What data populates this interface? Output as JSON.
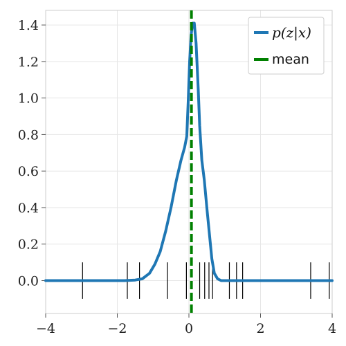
{
  "chart_data": {
    "type": "line",
    "xlim": [
      -4,
      4
    ],
    "ylim": [
      -0.18,
      1.48
    ],
    "grid": true,
    "legend_position": "top-right",
    "x_ticks": [
      -4,
      -2,
      0,
      2,
      4
    ],
    "x_tick_labels": [
      "−4",
      "−2",
      "0",
      "2",
      "4"
    ],
    "y_ticks": [
      0.0,
      0.2,
      0.4,
      0.6,
      0.8,
      1.0,
      1.2,
      1.4
    ],
    "y_tick_labels": [
      "0.0",
      "0.2",
      "0.4",
      "0.6",
      "0.8",
      "1.0",
      "1.2",
      "1.4"
    ],
    "series": [
      {
        "name": "p(z|x)",
        "color": "#1f77b4",
        "style": "solid",
        "points": [
          [
            -4.0,
            0.0
          ],
          [
            -1.8,
            0.0
          ],
          [
            -1.5,
            0.003
          ],
          [
            -1.3,
            0.01
          ],
          [
            -1.1,
            0.04
          ],
          [
            -0.95,
            0.09
          ],
          [
            -0.8,
            0.16
          ],
          [
            -0.65,
            0.27
          ],
          [
            -0.5,
            0.4
          ],
          [
            -0.35,
            0.55
          ],
          [
            -0.22,
            0.66
          ],
          [
            -0.12,
            0.73
          ],
          [
            -0.06,
            0.79
          ],
          [
            -0.02,
            0.98
          ],
          [
            0.02,
            1.2
          ],
          [
            0.06,
            1.34
          ],
          [
            0.1,
            1.41
          ],
          [
            0.15,
            1.41
          ],
          [
            0.2,
            1.3
          ],
          [
            0.26,
            1.05
          ],
          [
            0.3,
            0.85
          ],
          [
            0.36,
            0.66
          ],
          [
            0.43,
            0.55
          ],
          [
            0.5,
            0.4
          ],
          [
            0.57,
            0.26
          ],
          [
            0.64,
            0.12
          ],
          [
            0.71,
            0.04
          ],
          [
            0.8,
            0.01
          ],
          [
            0.9,
            0.0
          ],
          [
            4.0,
            0.0
          ]
        ]
      },
      {
        "name": "mean",
        "color": "#008000",
        "style": "dashed",
        "x": 0.07
      }
    ],
    "samples": [
      -2.97,
      -1.72,
      -1.38,
      -0.6,
      -0.07,
      0.3,
      0.44,
      0.56,
      0.66,
      1.13,
      1.33,
      1.5,
      3.4,
      3.92
    ],
    "sample_tick_range": [
      -0.1,
      0.1
    ]
  },
  "legend": {
    "density_label": "p(z|x)",
    "mean_label": "mean"
  }
}
